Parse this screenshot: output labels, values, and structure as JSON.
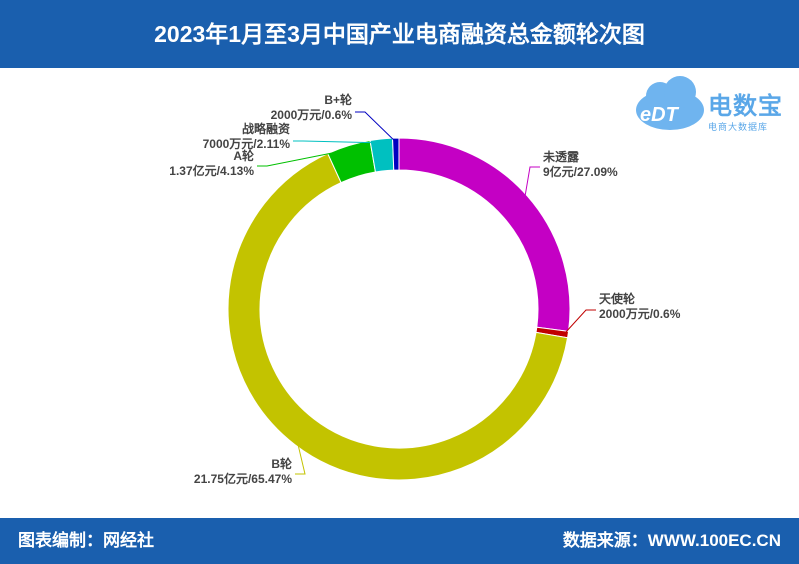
{
  "header": {
    "title": "2023年1月至3月中国产业电商融资总金额轮次图"
  },
  "footer": {
    "left": "图表编制：网经社",
    "right": "数据来源：WWW.100EC.CN"
  },
  "logo": {
    "name_cn": "电数宝",
    "subtitle": "电商大数据库",
    "mark": "eDT"
  },
  "chart_data": {
    "type": "pie",
    "donut": true,
    "title": "2023年1月至3月中国产业电商融资总金额轮次图",
    "slices": [
      {
        "name": "未透露",
        "amount": "9亿元",
        "percent": 27.09,
        "percent_label": "27.09%",
        "color": "#c400c4"
      },
      {
        "name": "天使轮",
        "amount": "2000万元",
        "percent": 0.6,
        "percent_label": "0.6%",
        "color": "#c00000"
      },
      {
        "name": "B轮",
        "amount": "21.75亿元",
        "percent": 65.47,
        "percent_label": "65.47%",
        "color": "#c3c300"
      },
      {
        "name": "A轮",
        "amount": "1.37亿元",
        "percent": 4.13,
        "percent_label": "4.13%",
        "color": "#00c000"
      },
      {
        "name": "战略融资",
        "amount": "7000万元",
        "percent": 2.11,
        "percent_label": "2.11%",
        "color": "#00c0c0"
      },
      {
        "name": "B+轮",
        "amount": "2000万元",
        "percent": 0.6,
        "percent_label": "0.6%",
        "color": "#0000c0"
      }
    ]
  }
}
